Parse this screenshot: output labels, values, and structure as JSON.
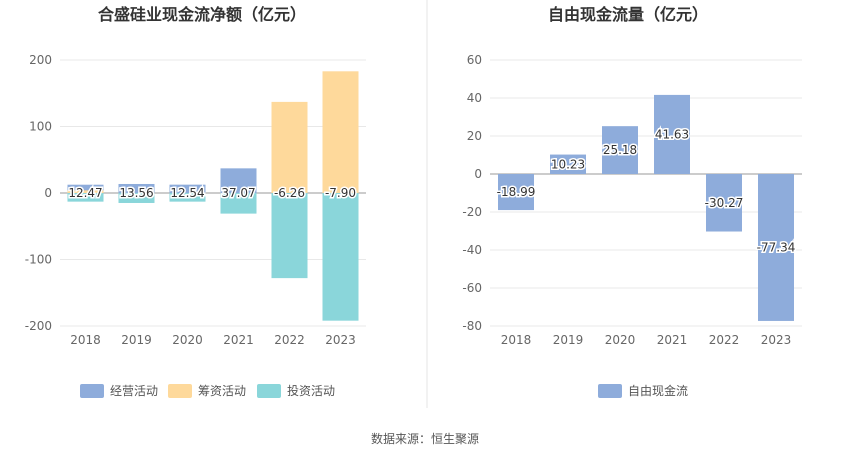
{
  "source_label": "数据来源：恒生聚源",
  "chart_data": [
    {
      "type": "bar",
      "stacked": true,
      "title": "合盛硅业现金流净额（亿元）",
      "categories": [
        "2018",
        "2019",
        "2020",
        "2021",
        "2022",
        "2023"
      ],
      "ylim": [
        -200,
        200
      ],
      "yticks": [
        200,
        100,
        0,
        -100,
        -200
      ],
      "grid": true,
      "legend_position": "bottom",
      "series": [
        {
          "name": "经营活动",
          "color": "#8eacdb",
          "values": [
            12.47,
            13.56,
            12.54,
            37.07,
            -6.26,
            -7.9
          ],
          "labels": [
            "12.47",
            "13.56",
            "12.54",
            "37.07",
            "-6.26",
            "-7.90"
          ]
        },
        {
          "name": "筹资活动",
          "color": "#fed99b",
          "values": [
            4,
            0,
            0,
            0,
            137,
            183
          ]
        },
        {
          "name": "投资活动",
          "color": "#8ad6da",
          "values": [
            -13,
            -15,
            -13,
            -31,
            -128,
            -192
          ]
        }
      ]
    },
    {
      "type": "bar",
      "title": "自由现金流量（亿元）",
      "categories": [
        "2018",
        "2019",
        "2020",
        "2021",
        "2022",
        "2023"
      ],
      "ylim": [
        -80,
        60
      ],
      "yticks": [
        60,
        40,
        20,
        0,
        -20,
        -40,
        -60,
        -80
      ],
      "grid": true,
      "legend_position": "bottom",
      "series": [
        {
          "name": "自由现金流",
          "color": "#8eacdb",
          "values": [
            -18.99,
            10.23,
            25.18,
            41.63,
            -30.27,
            -77.34
          ],
          "labels": [
            "-18.99",
            "10.23",
            "25.18",
            "41.63",
            "-30.27",
            "-77.34"
          ]
        }
      ]
    }
  ]
}
